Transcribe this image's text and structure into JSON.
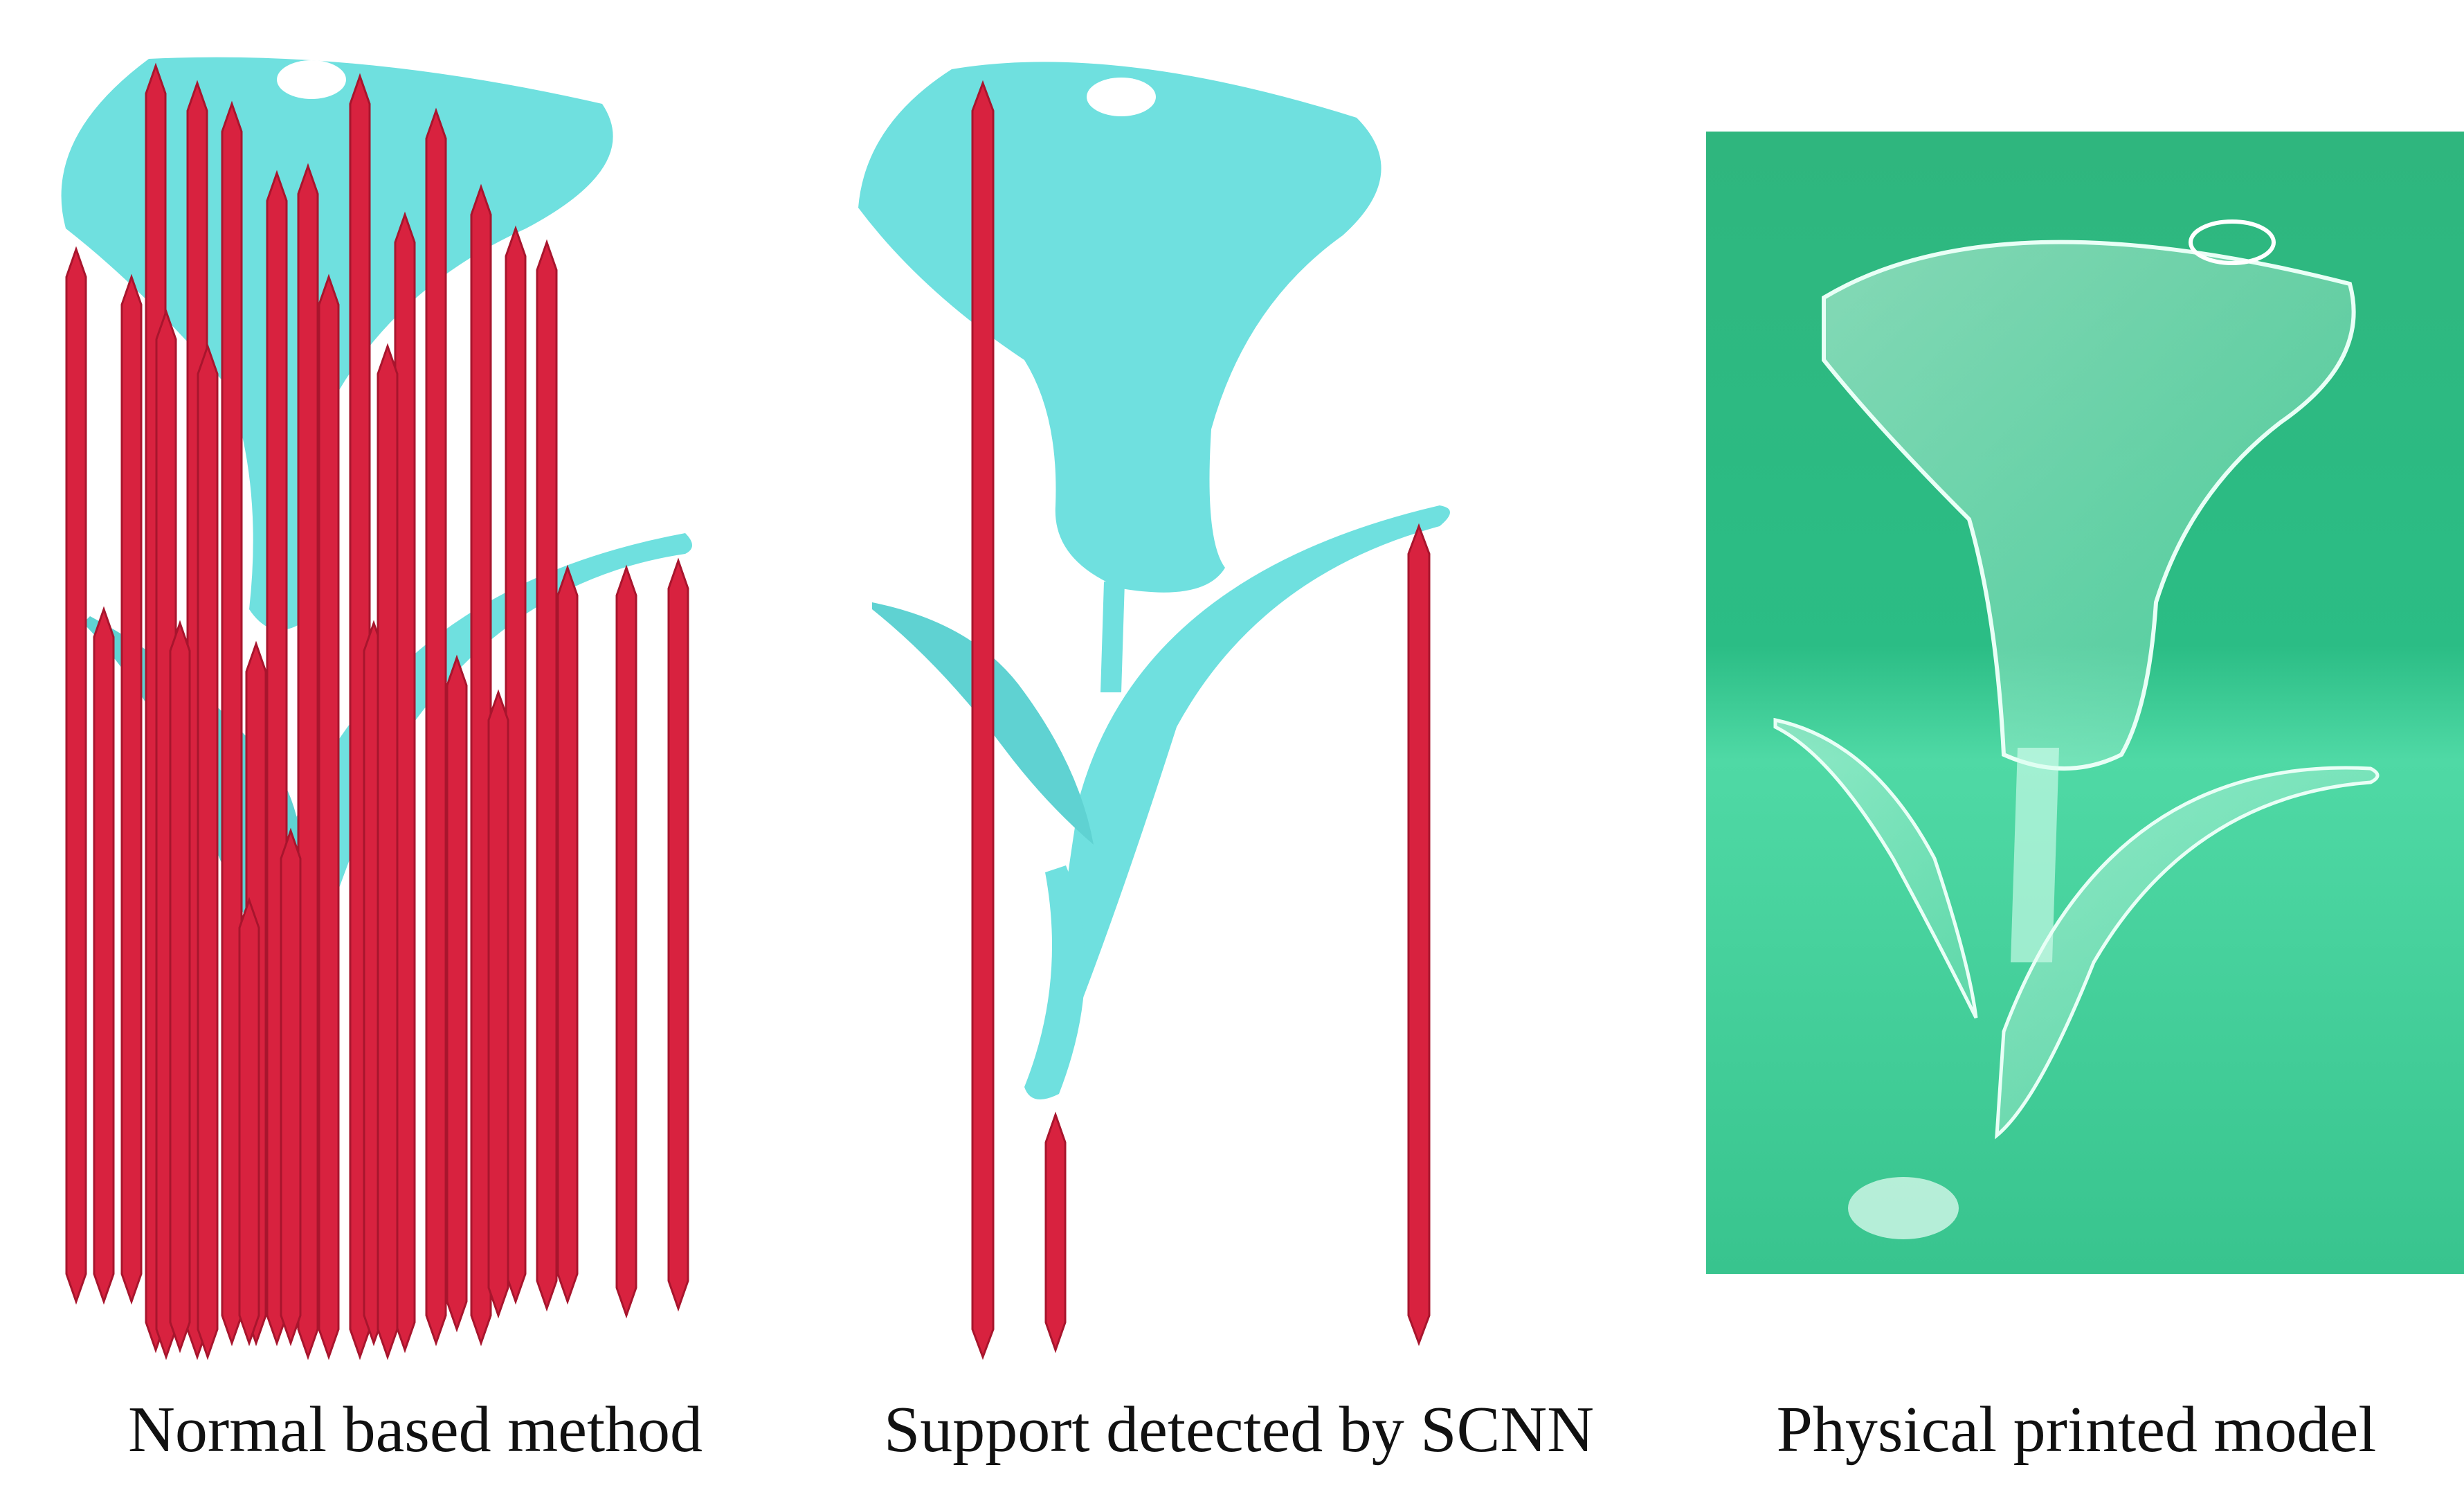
{
  "panels": [
    {
      "id": "normal",
      "caption": "Normal based method"
    },
    {
      "id": "scnn",
      "caption": "Support detected by SCNN"
    },
    {
      "id": "physical",
      "caption": "Physical printed model"
    }
  ],
  "colors": {
    "model": "#6fe0df",
    "model_shade": "#4fc3c3",
    "support": "#d8223f",
    "support_dark": "#a8152d",
    "photo_bg": "#2fc489",
    "photo_light": "#5fe0b0"
  }
}
